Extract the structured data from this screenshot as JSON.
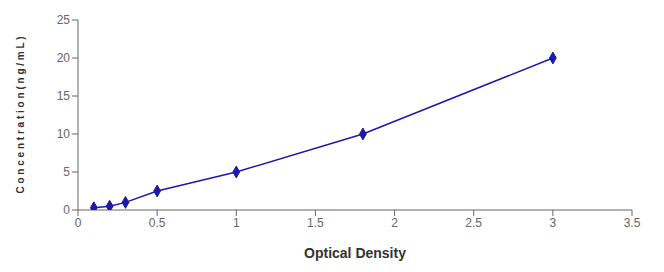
{
  "chart_data": {
    "type": "line",
    "xlabel": "Optical Density",
    "ylabel": "C o n c e n t r a t i o n ( n g / m L )",
    "x": [
      0.1,
      0.2,
      0.3,
      0.5,
      1.0,
      1.8,
      3.0
    ],
    "values": [
      0.3,
      0.5,
      1.0,
      2.5,
      5.0,
      10.0,
      20.0
    ],
    "color": "#1a1aaa",
    "marker": "diamond",
    "xlim": [
      0,
      3.5
    ],
    "ylim": [
      0,
      25
    ],
    "xticks": [
      0,
      0.5,
      1,
      1.5,
      2,
      2.5,
      3,
      3.5
    ],
    "yticks": [
      0,
      5,
      10,
      15,
      20,
      25
    ],
    "grid": false
  }
}
